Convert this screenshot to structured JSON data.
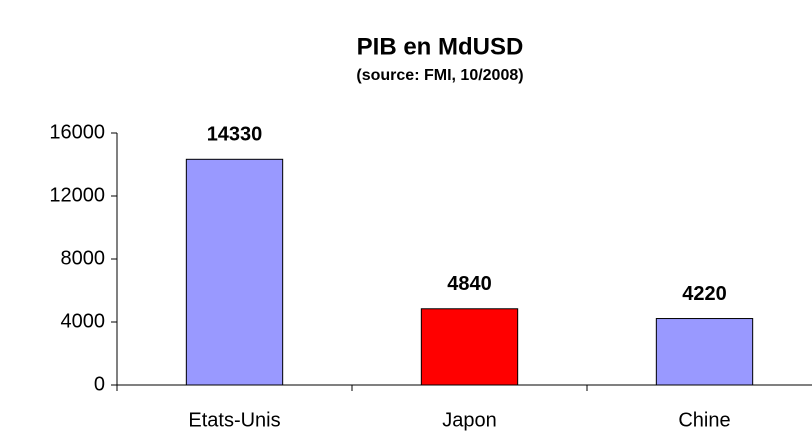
{
  "chart_data": {
    "type": "bar",
    "title": "PIB en MdUSD",
    "subtitle": "(source: FMI, 10/2008)",
    "categories": [
      "Etats-Unis",
      "Japon",
      "Chine"
    ],
    "values": [
      14330,
      4840,
      4220
    ],
    "colors": [
      "#9999ff",
      "#ff0000",
      "#9999ff"
    ],
    "ylim": [
      0,
      16000
    ],
    "yticks": [
      0,
      4000,
      8000,
      12000,
      16000
    ],
    "grid": false
  }
}
